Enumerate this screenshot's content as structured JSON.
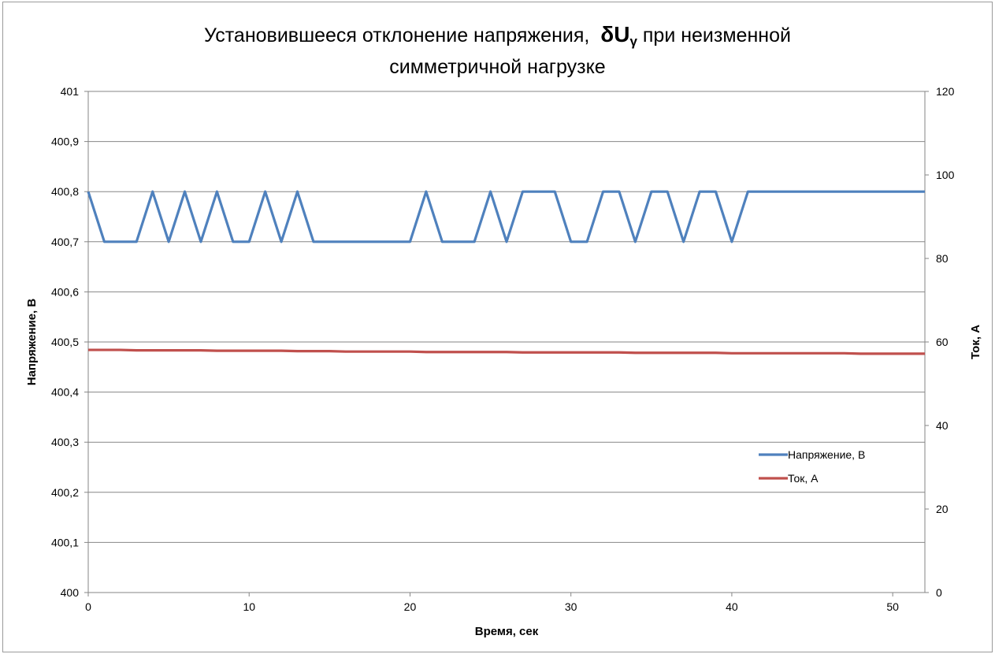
{
  "chart_data": {
    "type": "line",
    "title_part1": "Установившееся отклонение напряжения,",
    "title_symbol": "δU",
    "title_symbol_sub": "γ",
    "title_part2": "при неизменной",
    "title_line2": "симметричной нагрузке",
    "xlabel": "Время, сек",
    "ylabel": "Напряжение, В",
    "y2label": "Ток, А",
    "xlim": [
      0,
      52
    ],
    "ylim": [
      400,
      401
    ],
    "y2lim": [
      0,
      120
    ],
    "x_ticks": [
      "0",
      "10",
      "20",
      "30",
      "40",
      "50"
    ],
    "y_ticks": [
      "400",
      "400,1",
      "400,2",
      "400,3",
      "400,4",
      "400,5",
      "400,6",
      "400,7",
      "400,8",
      "400,9",
      "401"
    ],
    "y2_ticks": [
      "0",
      "20",
      "40",
      "60",
      "80",
      "100",
      "120"
    ],
    "grid": "horizontal",
    "legend_position": "lower-right",
    "x": [
      0,
      1,
      2,
      3,
      4,
      5,
      6,
      7,
      8,
      9,
      10,
      11,
      12,
      13,
      14,
      15,
      16,
      17,
      18,
      19,
      20,
      21,
      22,
      23,
      24,
      25,
      26,
      27,
      28,
      29,
      30,
      31,
      32,
      33,
      34,
      35,
      36,
      37,
      38,
      39,
      40,
      41,
      42,
      43,
      44,
      45,
      46,
      47,
      48,
      49,
      50,
      51,
      52
    ],
    "series": [
      {
        "name": "Напряжение, В",
        "axis": "left",
        "color": "#4f81bd",
        "values": [
          400.8,
          400.7,
          400.7,
          400.7,
          400.8,
          400.7,
          400.8,
          400.7,
          400.8,
          400.7,
          400.7,
          400.8,
          400.7,
          400.8,
          400.7,
          400.7,
          400.7,
          400.7,
          400.7,
          400.7,
          400.7,
          400.8,
          400.7,
          400.7,
          400.7,
          400.8,
          400.7,
          400.8,
          400.8,
          400.8,
          400.7,
          400.7,
          400.8,
          400.8,
          400.7,
          400.8,
          400.8,
          400.7,
          400.8,
          400.8,
          400.7,
          400.8,
          400.8,
          400.8,
          400.8,
          400.8,
          400.8,
          400.8,
          400.8,
          400.8,
          400.8,
          400.8,
          400.8
        ]
      },
      {
        "name": "Ток, А",
        "axis": "right",
        "color": "#c0504d",
        "values": [
          58.1,
          58.1,
          58.1,
          58.0,
          58.0,
          58.0,
          58.0,
          58.0,
          57.9,
          57.9,
          57.9,
          57.9,
          57.9,
          57.8,
          57.8,
          57.8,
          57.7,
          57.7,
          57.7,
          57.7,
          57.7,
          57.6,
          57.6,
          57.6,
          57.6,
          57.6,
          57.6,
          57.5,
          57.5,
          57.5,
          57.5,
          57.5,
          57.5,
          57.5,
          57.4,
          57.4,
          57.4,
          57.4,
          57.4,
          57.4,
          57.3,
          57.3,
          57.3,
          57.3,
          57.3,
          57.3,
          57.3,
          57.3,
          57.2,
          57.2,
          57.2,
          57.2,
          57.2
        ]
      }
    ]
  }
}
